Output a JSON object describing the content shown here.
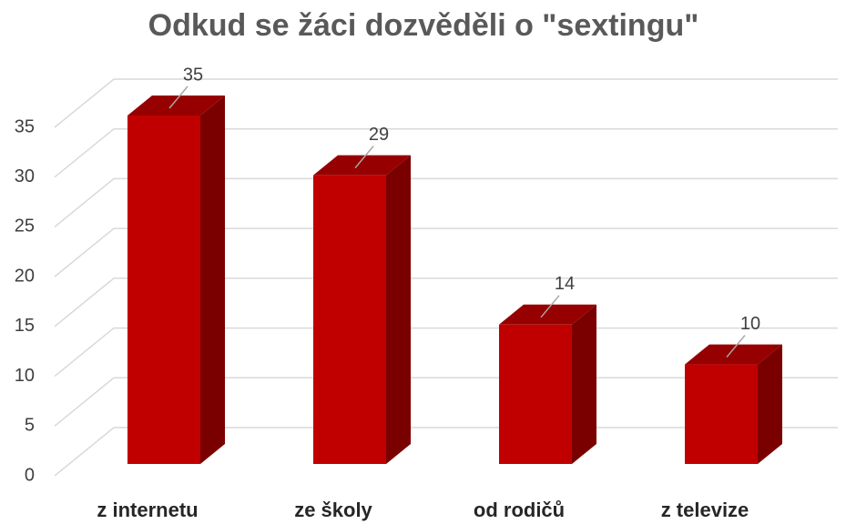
{
  "chart_data": {
    "type": "bar3d",
    "title": "Odkud se žáci dozvěděli o \"sextingu\"",
    "categories": [
      "z internetu",
      "ze školy",
      "od rodičů",
      "z televize"
    ],
    "values": [
      35,
      29,
      14,
      10
    ],
    "color": "#c00000",
    "ylim": [
      0,
      35
    ],
    "yticks": [
      0,
      5,
      10,
      15,
      20,
      25,
      30,
      35
    ],
    "grid": true
  }
}
